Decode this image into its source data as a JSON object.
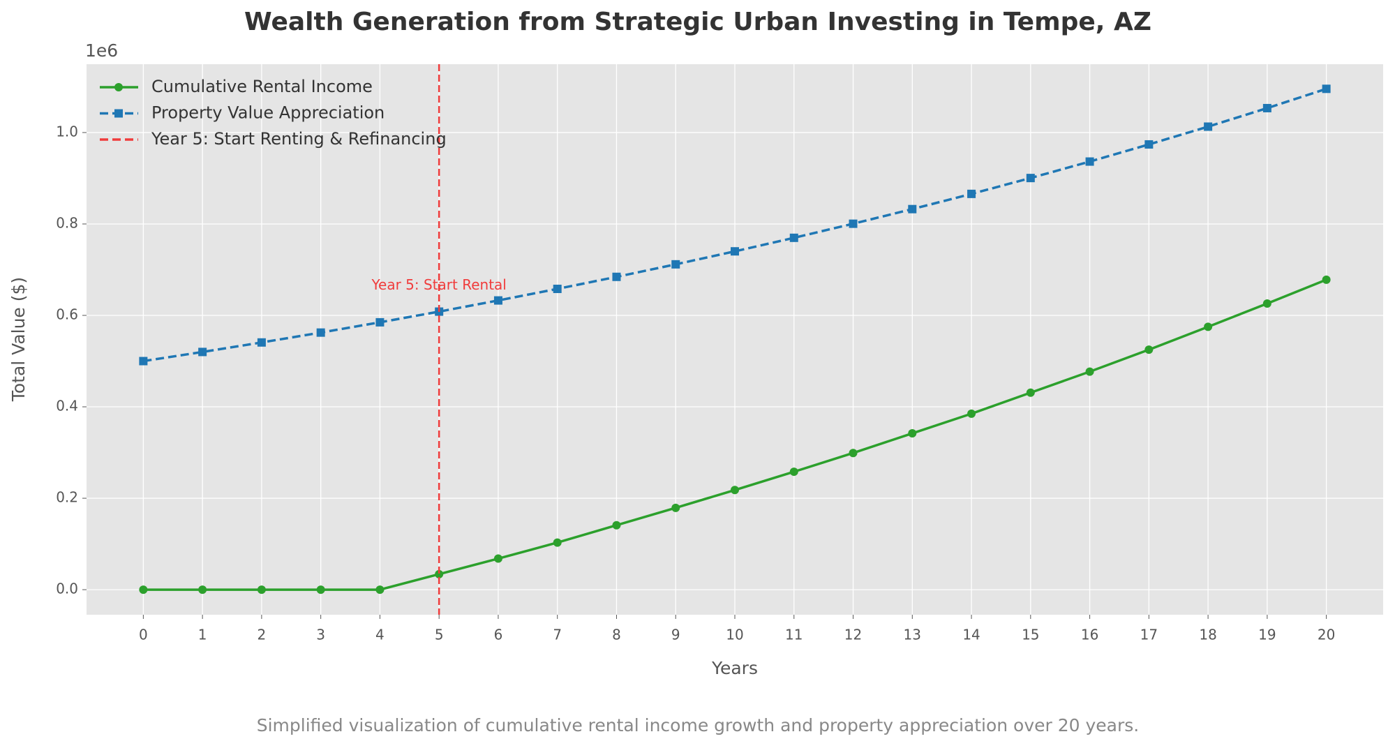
{
  "chart_data": {
    "type": "line",
    "title": "Wealth Generation from Strategic Urban Investing in Tempe, AZ",
    "xlabel": "Years",
    "ylabel": "Total Value ($)",
    "y_offset_label": "1e6",
    "caption": "Simplified visualization of cumulative rental income growth and property appreciation over 20 years.",
    "x": [
      0,
      1,
      2,
      3,
      4,
      5,
      6,
      7,
      8,
      9,
      10,
      11,
      12,
      13,
      14,
      15,
      16,
      17,
      18,
      19,
      20
    ],
    "series": [
      {
        "name": "Cumulative Rental Income",
        "color": "#2ca02c",
        "marker": "circle",
        "dash": false,
        "values": [
          0,
          0,
          0,
          0,
          0,
          34000,
          68000,
          103000,
          141000,
          179000,
          218000,
          258000,
          299000,
          342000,
          385000,
          431000,
          477000,
          525000,
          575000,
          626000,
          678000
        ]
      },
      {
        "name": "Property Value Appreciation",
        "color": "#1f77b4",
        "marker": "square",
        "dash": true,
        "values": [
          500000,
          520000,
          540800,
          562400,
          584900,
          608300,
          632700,
          658000,
          684300,
          711700,
          740100,
          769700,
          800500,
          832500,
          865800,
          900500,
          936500,
          974000,
          1012900,
          1053400,
          1095600
        ]
      }
    ],
    "vlines": [
      {
        "x": 5,
        "label": "Year 5: Start Renting & Refinancing",
        "color": "#f03c3c"
      }
    ],
    "annotations": [
      {
        "text": "Year 5: Start Rental",
        "x": 5,
        "y": 665000,
        "color": "#f03c3c"
      }
    ],
    "xlim": [
      -0.96,
      20.96
    ],
    "ylim": [
      -54800,
      1149500
    ],
    "xticks": [
      0,
      1,
      2,
      3,
      4,
      5,
      6,
      7,
      8,
      9,
      10,
      11,
      12,
      13,
      14,
      15,
      16,
      17,
      18,
      19,
      20
    ],
    "yticks": [
      {
        "value": 0,
        "label": "0.0"
      },
      {
        "value": 200000,
        "label": "0.2"
      },
      {
        "value": 400000,
        "label": "0.4"
      },
      {
        "value": 600000,
        "label": "0.6"
      },
      {
        "value": 800000,
        "label": "0.8"
      },
      {
        "value": 1000000,
        "label": "1.0"
      }
    ],
    "grid": true,
    "legend": "upper left"
  }
}
